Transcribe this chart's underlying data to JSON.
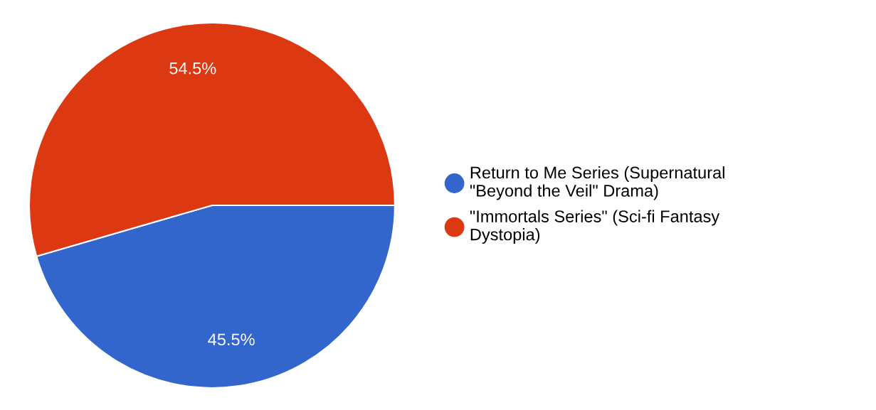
{
  "chart_data": {
    "type": "pie",
    "categories": [
      "Return to Me Series (Supernatural \"Beyond the Veil\" Drama)",
      "\"Immortals Series\" (Sci-fi Fantasy Dystopia)"
    ],
    "values": [
      45.5,
      54.5
    ],
    "colors": [
      "#3366cc",
      "#dc3912"
    ],
    "value_labels": [
      "45.5%",
      "54.5%"
    ],
    "legend": "right"
  }
}
